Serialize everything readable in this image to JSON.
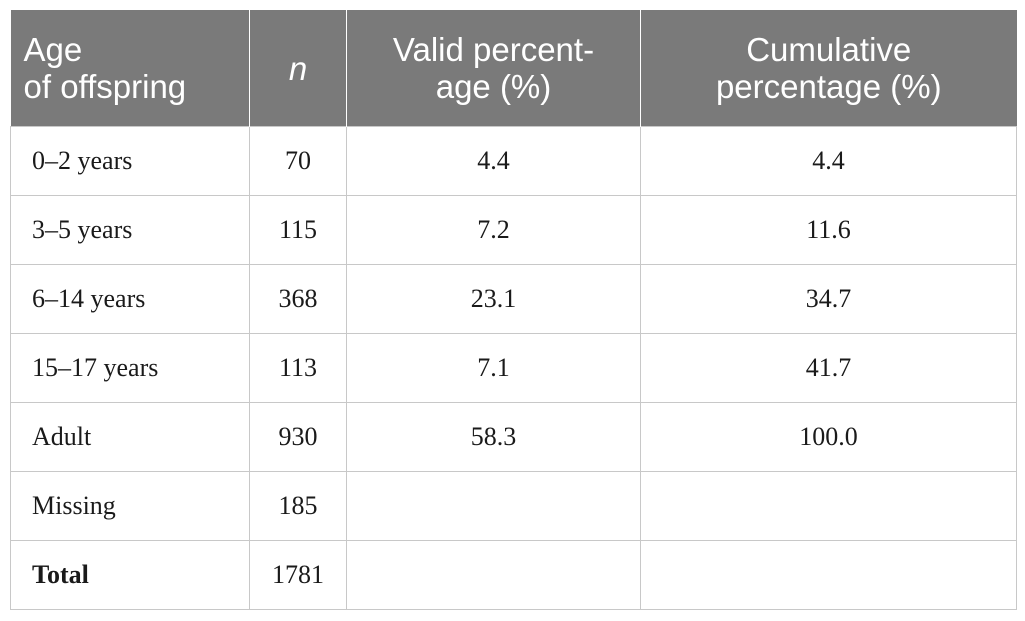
{
  "table": {
    "headers": {
      "age": [
        "Age",
        "of offspring"
      ],
      "n": "n",
      "valid": [
        "Valid percent-",
        "age (%)"
      ],
      "cumulative": [
        "Cumulative",
        "percentage (%)"
      ]
    },
    "rows": [
      {
        "age": "0–2 years",
        "n": "70",
        "valid": "4.4",
        "cumulative": "4.4"
      },
      {
        "age": "3–5 years",
        "n": "115",
        "valid": "7.2",
        "cumulative": "11.6"
      },
      {
        "age": "6–14 years",
        "n": "368",
        "valid": "23.1",
        "cumulative": "34.7"
      },
      {
        "age": "15–17 years",
        "n": "113",
        "valid": "7.1",
        "cumulative": "41.7"
      },
      {
        "age": "Adult",
        "n": "930",
        "valid": "58.3",
        "cumulative": "100.0"
      },
      {
        "age": "Missing",
        "n": "185",
        "valid": "",
        "cumulative": ""
      }
    ],
    "total": {
      "age": "Total",
      "n": "1781",
      "valid": "",
      "cumulative": ""
    },
    "colors": {
      "header_bg": "#7a7a7a",
      "header_text": "#ffffff",
      "grid": "#c8c8c8"
    }
  }
}
